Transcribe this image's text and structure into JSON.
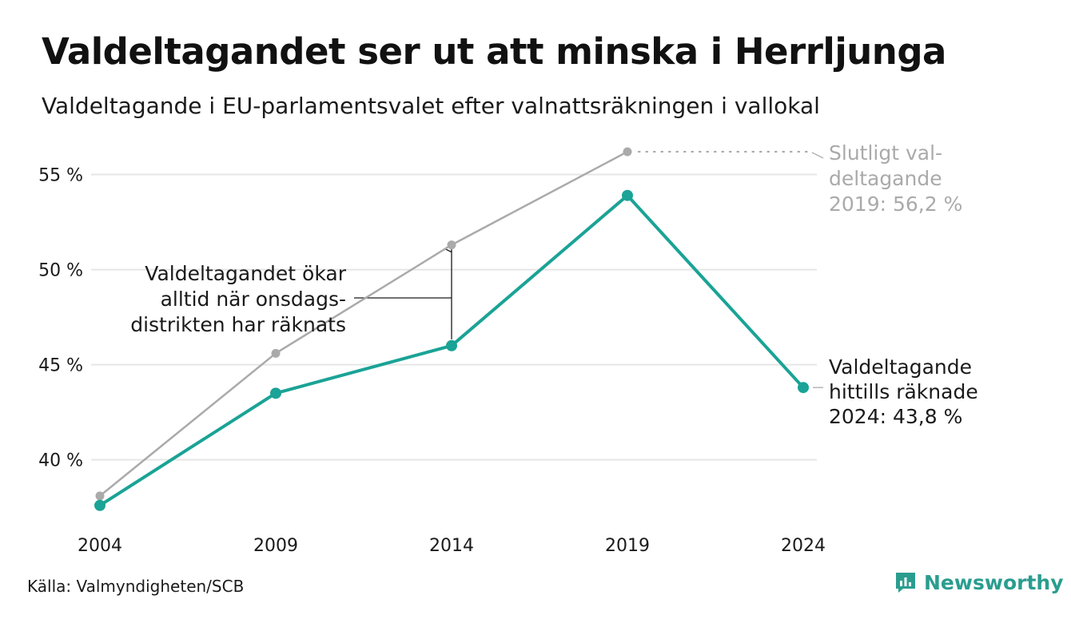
{
  "title": "Valdeltagandet ser ut att minska i Herrljunga",
  "subtitle": "Valdeltagande i EU-parlamentsvalet efter valnattsräkningen i vallokal",
  "source": "Källa: Valmyndigheten/SCB",
  "logo_text": "Newsworthy",
  "colors": {
    "primary": "#1aa396",
    "secondary": "#aaaaaa",
    "grid": "#e6e6e6",
    "text": "#1a1a1a"
  },
  "chart_data": {
    "type": "line",
    "x": [
      2004,
      2009,
      2014,
      2019,
      2024
    ],
    "x_tick_labels": [
      "2004",
      "2009",
      "2014",
      "2019",
      "2024"
    ],
    "y_ticks": [
      40,
      45,
      50,
      55
    ],
    "y_tick_labels": [
      "40 %",
      "45 %",
      "50 %",
      "55 %"
    ],
    "ylim": [
      36.5,
      57.5
    ],
    "grid": true,
    "series": [
      {
        "key": "final",
        "color": "#aaaaaa",
        "x": [
          2004,
          2009,
          2014,
          2019
        ],
        "values": [
          38.1,
          45.6,
          51.3,
          56.2
        ]
      },
      {
        "key": "night",
        "color": "#1aa396",
        "x": [
          2004,
          2009,
          2014,
          2019,
          2024
        ],
        "values": [
          37.6,
          43.5,
          46.0,
          53.9,
          43.8
        ]
      }
    ],
    "annotations": {
      "final_label": [
        "Slutligt val-",
        "deltagande",
        "2019: 56,2 %"
      ],
      "night_label": [
        "Valdeltagande",
        "hittills räknade",
        "2024: 43,8 %"
      ],
      "gap_label": [
        "Valdeltagandet ökar",
        "alltid när onsdags-",
        "distrikten har räknats"
      ]
    }
  }
}
